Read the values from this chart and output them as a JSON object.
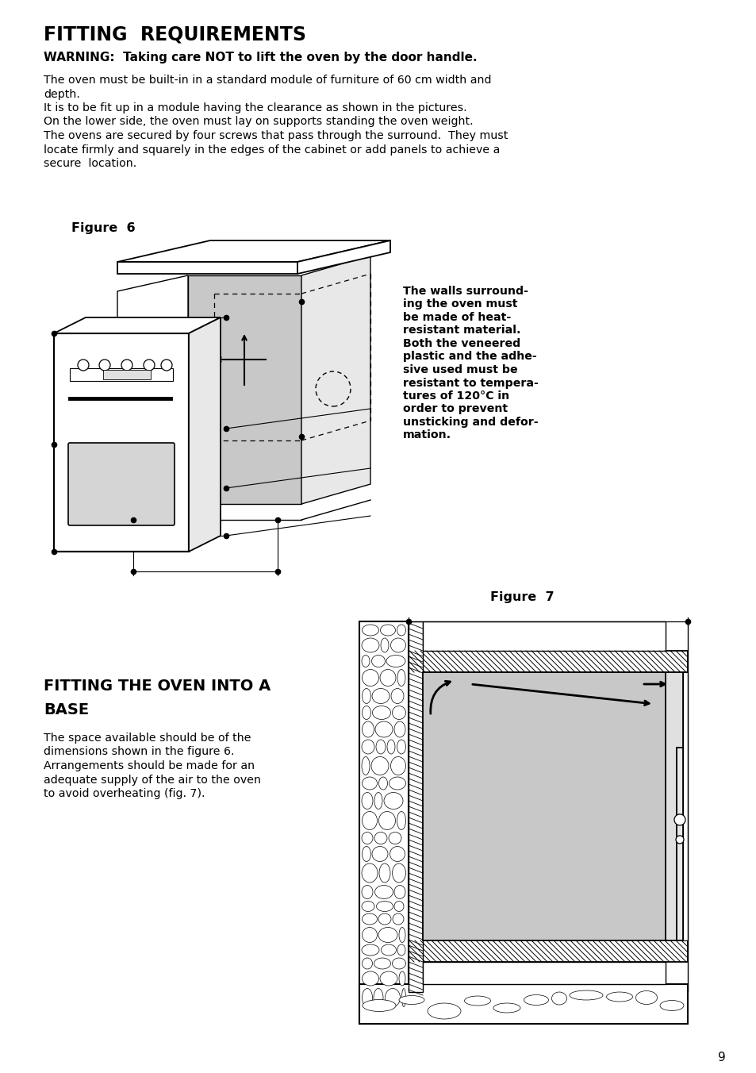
{
  "page_bg": "#ffffff",
  "title": "FITTING  REQUIREMENTS",
  "warning": "WARNING:  Taking care NOT to lift the oven by the door handle.",
  "body_lines": [
    "The oven must be built-in in a standard module of furniture of 60 cm width and",
    "depth.",
    "It is to be fit up in a module having the clearance as shown in the pictures.",
    "On the lower side, the oven must lay on supports standing the oven weight.",
    "The ovens are secured by four screws that pass through the surround.  They must",
    "locate firmly and squarely in the edges of the cabinet or add panels to achieve a",
    "secure  location."
  ],
  "fig6_label": "Figure  6",
  "fig7_label": "Figure  7",
  "side_text_lines": [
    "The walls surround-",
    "ing the oven must",
    "be made of heat-",
    "resistant material.",
    "Both the veneered",
    "plastic and the adhe-",
    "sive used must be",
    "resistant to tempera-",
    "tures of 120°C in",
    "order to prevent",
    "unsticking and defor-",
    "mation."
  ],
  "section2_title_lines": [
    "FITTING THE OVEN INTO A",
    "BASE"
  ],
  "section2_body_lines": [
    "The space available should be of the",
    "dimensions shown in the figure 6.",
    "Arrangements should be made for an",
    "adequate supply of the air to the oven",
    "to avoid overheating (fig. 7)."
  ],
  "page_num": "9",
  "text_color": "#000000",
  "gray_fill": "#c8c8c8",
  "hatch_fill": "#888888"
}
